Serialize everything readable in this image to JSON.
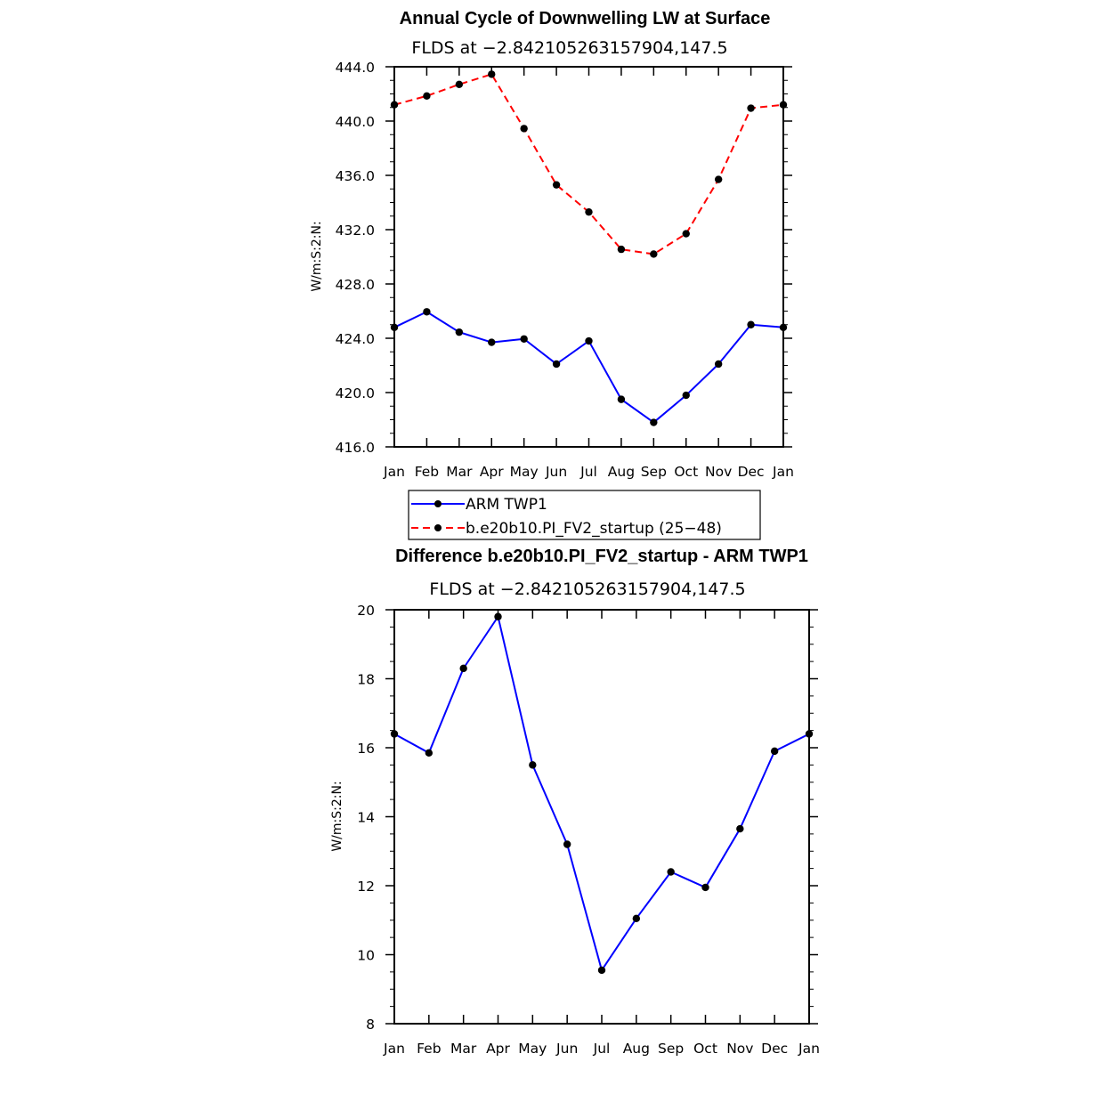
{
  "chart_data": [
    {
      "type": "line",
      "title": "Annual Cycle of Downwelling LW at Surface",
      "subtitle": "FLDS at −2.842105263157904,147.5",
      "ylabel": "W/m:S:2:N:",
      "xlabel": "",
      "categories": [
        "Jan",
        "Feb",
        "Mar",
        "Apr",
        "May",
        "Jun",
        "Jul",
        "Aug",
        "Sep",
        "Oct",
        "Nov",
        "Dec",
        "Jan"
      ],
      "ylim": [
        416.0,
        444.0
      ],
      "yticks": [
        "416.0",
        "420.0",
        "424.0",
        "428.0",
        "432.0",
        "436.0",
        "440.0",
        "444.0"
      ],
      "grid": false,
      "series": [
        {
          "name": "ARM TWP1",
          "color": "#0000ff",
          "dash": "solid",
          "values": [
            424.8,
            425.95,
            424.45,
            423.7,
            423.95,
            422.1,
            423.8,
            419.5,
            417.8,
            419.8,
            422.1,
            425.0,
            424.8
          ]
        },
        {
          "name": "b.e20b10.PI_FV2_startup (25−48)",
          "color": "#ff0000",
          "dash": "dashed",
          "values": [
            441.2,
            441.85,
            442.7,
            443.45,
            439.45,
            435.3,
            433.3,
            430.55,
            430.2,
            431.7,
            435.7,
            440.95,
            441.2
          ]
        }
      ],
      "legend_position": "bottom-center"
    },
    {
      "type": "line",
      "title": "Difference b.e20b10.PI_FV2_startup - ARM TWP1",
      "subtitle": "FLDS at −2.842105263157904,147.5",
      "ylabel": "W/m:S:2:N:",
      "xlabel": "",
      "categories": [
        "Jan",
        "Feb",
        "Mar",
        "Apr",
        "May",
        "Jun",
        "Jul",
        "Aug",
        "Sep",
        "Oct",
        "Nov",
        "Dec",
        "Jan"
      ],
      "ylim": [
        8,
        20
      ],
      "yticks": [
        "8",
        "10",
        "12",
        "14",
        "16",
        "18",
        "20"
      ],
      "grid": false,
      "series": [
        {
          "color": "#0000ff",
          "dash": "solid",
          "values": [
            16.4,
            15.85,
            18.3,
            19.8,
            15.5,
            13.2,
            9.55,
            11.05,
            12.4,
            11.95,
            13.65,
            15.9,
            16.4
          ]
        }
      ]
    }
  ]
}
